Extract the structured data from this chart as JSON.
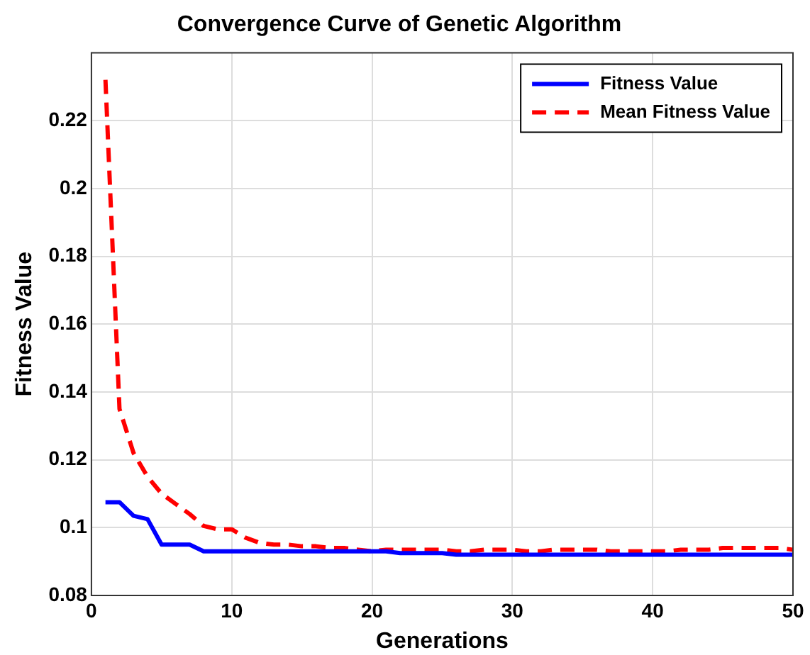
{
  "chart_data": {
    "type": "line",
    "title": "Convergence Curve of Genetic Algorithm",
    "xlabel": "Generations",
    "ylabel": "Fitness Value",
    "x": [
      1,
      2,
      3,
      4,
      5,
      6,
      7,
      8,
      9,
      10,
      11,
      12,
      13,
      14,
      15,
      16,
      17,
      18,
      19,
      20,
      21,
      22,
      23,
      24,
      25,
      26,
      27,
      28,
      29,
      30,
      31,
      32,
      33,
      34,
      35,
      36,
      37,
      38,
      39,
      40,
      41,
      42,
      43,
      44,
      45,
      46,
      47,
      48,
      49,
      50
    ],
    "series": [
      {
        "name": "Fitness Value",
        "color": "#0000ff",
        "line_style": "solid",
        "values": [
          0.1075,
          0.1075,
          0.1035,
          0.1025,
          0.095,
          0.095,
          0.095,
          0.093,
          0.093,
          0.093,
          0.093,
          0.093,
          0.093,
          0.093,
          0.093,
          0.093,
          0.093,
          0.093,
          0.093,
          0.093,
          0.093,
          0.0925,
          0.0925,
          0.0925,
          0.0925,
          0.092,
          0.092,
          0.092,
          0.092,
          0.092,
          0.092,
          0.092,
          0.092,
          0.092,
          0.092,
          0.092,
          0.092,
          0.092,
          0.092,
          0.092,
          0.092,
          0.092,
          0.092,
          0.092,
          0.092,
          0.092,
          0.092,
          0.092,
          0.092,
          0.092
        ]
      },
      {
        "name": "Mean Fitness Value",
        "color": "#ff0000",
        "line_style": "dashed",
        "values": [
          0.232,
          0.135,
          0.122,
          0.115,
          0.11,
          0.107,
          0.104,
          0.1005,
          0.0995,
          0.0995,
          0.097,
          0.0955,
          0.095,
          0.095,
          0.0945,
          0.0945,
          0.094,
          0.094,
          0.0935,
          0.093,
          0.0935,
          0.0935,
          0.0935,
          0.0935,
          0.0935,
          0.093,
          0.093,
          0.0935,
          0.0935,
          0.0935,
          0.093,
          0.093,
          0.0935,
          0.0935,
          0.0935,
          0.0935,
          0.093,
          0.093,
          0.093,
          0.093,
          0.093,
          0.0935,
          0.0935,
          0.0935,
          0.094,
          0.094,
          0.094,
          0.094,
          0.094,
          0.0935
        ]
      }
    ],
    "xlim": [
      0,
      50
    ],
    "xticks": [
      0,
      10,
      20,
      30,
      40,
      50
    ],
    "ylim": [
      0.08,
      0.24
    ],
    "yticks": [
      0.08,
      0.1,
      0.12,
      0.14,
      0.16,
      0.18,
      0.2,
      0.22
    ],
    "grid": true,
    "legend": "top right",
    "marker": "none"
  }
}
